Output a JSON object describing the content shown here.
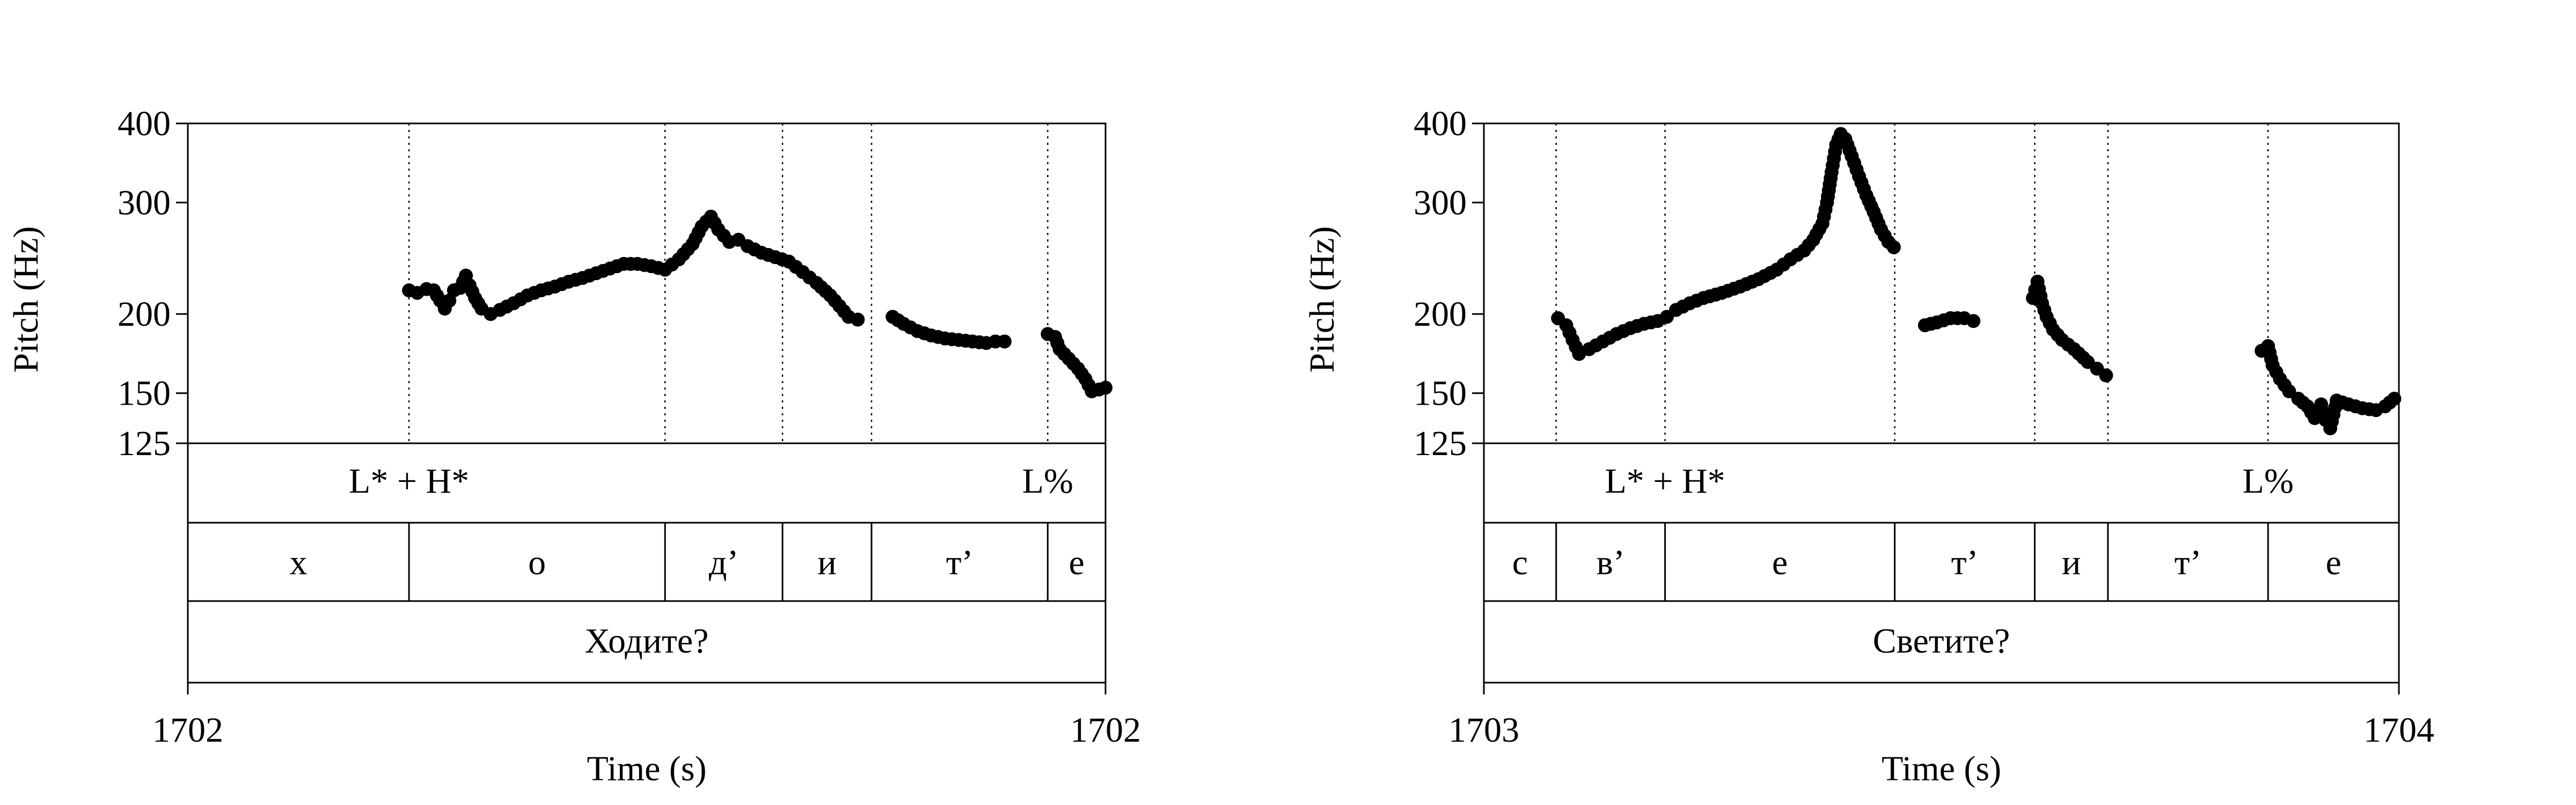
{
  "chart_data": [
    {
      "type": "scatter",
      "title": "",
      "xlabel": "Time (s)",
      "ylabel": "Pitch (Hz)",
      "x_tick_labels": [
        "1702",
        "1702"
      ],
      "xlim": [
        0,
        1
      ],
      "ylim": [
        125,
        400
      ],
      "yscale": "log",
      "yticks": [
        125,
        150,
        200,
        300,
        400
      ],
      "boundaries": [
        0.241,
        0.52,
        0.648,
        0.745,
        0.937
      ],
      "tones": [
        {
          "label": "L* + H*",
          "x": 0.241
        },
        {
          "label": "L%",
          "x": 0.937
        }
      ],
      "segments": [
        {
          "label": "х",
          "start": 0.0,
          "end": 0.241
        },
        {
          "label": "о",
          "start": 0.241,
          "end": 0.52
        },
        {
          "label": "д’",
          "start": 0.52,
          "end": 0.648
        },
        {
          "label": "и",
          "start": 0.648,
          "end": 0.745
        },
        {
          "label": "т’",
          "start": 0.745,
          "end": 0.937
        },
        {
          "label": "е",
          "start": 0.937,
          "end": 1.0
        }
      ],
      "word": "Ходите?",
      "pitch_contours": [
        [
          [
            0.241,
            218
          ],
          [
            0.25,
            216
          ],
          [
            0.26,
            219
          ],
          [
            0.268,
            218
          ],
          [
            0.275,
            210
          ],
          [
            0.28,
            204
          ],
          [
            0.285,
            210
          ],
          [
            0.29,
            218
          ],
          [
            0.297,
            220
          ],
          [
            0.303,
            230
          ],
          [
            0.307,
            222
          ],
          [
            0.313,
            212
          ],
          [
            0.32,
            204
          ],
          [
            0.33,
            200
          ],
          [
            0.34,
            203
          ],
          [
            0.355,
            208
          ],
          [
            0.37,
            214
          ],
          [
            0.385,
            218
          ],
          [
            0.4,
            221
          ],
          [
            0.415,
            225
          ],
          [
            0.43,
            228
          ],
          [
            0.445,
            232
          ],
          [
            0.46,
            236
          ],
          [
            0.475,
            240
          ],
          [
            0.49,
            240
          ],
          [
            0.505,
            238
          ],
          [
            0.52,
            235
          ],
          [
            0.535,
            244
          ],
          [
            0.55,
            258
          ],
          [
            0.56,
            275
          ],
          [
            0.57,
            285
          ],
          [
            0.578,
            272
          ],
          [
            0.59,
            260
          ],
          [
            0.6,
            262
          ],
          [
            0.61,
            256
          ],
          [
            0.625,
            250
          ],
          [
            0.64,
            246
          ],
          [
            0.655,
            242
          ],
          [
            0.67,
            233
          ],
          [
            0.685,
            224
          ],
          [
            0.7,
            214
          ],
          [
            0.71,
            206
          ],
          [
            0.72,
            198
          ],
          [
            0.73,
            196
          ]
        ],
        [
          [
            0.768,
            198
          ],
          [
            0.78,
            193
          ],
          [
            0.795,
            188
          ],
          [
            0.81,
            185
          ],
          [
            0.825,
            183
          ],
          [
            0.84,
            182
          ],
          [
            0.855,
            181
          ],
          [
            0.87,
            180
          ],
          [
            0.88,
            181
          ],
          [
            0.89,
            181
          ]
        ],
        [
          [
            0.937,
            186
          ],
          [
            0.945,
            184
          ],
          [
            0.95,
            176
          ],
          [
            0.96,
            170
          ],
          [
            0.97,
            164
          ],
          [
            0.978,
            158
          ],
          [
            0.985,
            151
          ],
          [
            0.993,
            152
          ],
          [
            1.0,
            153
          ]
        ]
      ]
    },
    {
      "type": "scatter",
      "title": "",
      "xlabel": "Time (s)",
      "ylabel": "Pitch (Hz)",
      "x_tick_labels": [
        "1703",
        "1704"
      ],
      "xlim": [
        0,
        1
      ],
      "ylim": [
        125,
        400
      ],
      "yscale": "log",
      "yticks": [
        125,
        150,
        200,
        300,
        400
      ],
      "boundaries": [
        0.079,
        0.198,
        0.449,
        0.602,
        0.682,
        0.857
      ],
      "tones": [
        {
          "label": "L* + H*",
          "x": 0.198
        },
        {
          "label": "L%",
          "x": 0.857
        }
      ],
      "segments": [
        {
          "label": "с",
          "start": 0.0,
          "end": 0.079
        },
        {
          "label": "в’",
          "start": 0.079,
          "end": 0.198
        },
        {
          "label": "е",
          "start": 0.198,
          "end": 0.449
        },
        {
          "label": "т’",
          "start": 0.449,
          "end": 0.602
        },
        {
          "label": "и",
          "start": 0.602,
          "end": 0.682
        },
        {
          "label": "т’",
          "start": 0.682,
          "end": 0.857
        },
        {
          "label": "е",
          "start": 0.857,
          "end": 1.0
        }
      ],
      "word": "Светите?",
      "pitch_contours": [
        [
          [
            0.081,
            197
          ],
          [
            0.09,
            192
          ],
          [
            0.097,
            182
          ],
          [
            0.104,
            173
          ],
          [
            0.115,
            176
          ],
          [
            0.13,
            181
          ],
          [
            0.145,
            186
          ],
          [
            0.16,
            190
          ],
          [
            0.175,
            193
          ],
          [
            0.19,
            195
          ],
          [
            0.2,
            198
          ],
          [
            0.21,
            203
          ],
          [
            0.225,
            208
          ],
          [
            0.24,
            212
          ],
          [
            0.26,
            216
          ],
          [
            0.28,
            221
          ],
          [
            0.3,
            227
          ],
          [
            0.32,
            235
          ],
          [
            0.335,
            244
          ],
          [
            0.35,
            252
          ],
          [
            0.36,
            262
          ],
          [
            0.37,
            278
          ],
          [
            0.375,
            300
          ],
          [
            0.38,
            335
          ],
          [
            0.385,
            370
          ],
          [
            0.39,
            385
          ],
          [
            0.395,
            378
          ],
          [
            0.402,
            355
          ],
          [
            0.41,
            330
          ],
          [
            0.418,
            308
          ],
          [
            0.426,
            290
          ],
          [
            0.434,
            272
          ],
          [
            0.442,
            260
          ],
          [
            0.448,
            255
          ]
        ],
        [
          [
            0.482,
            192
          ],
          [
            0.495,
            194
          ],
          [
            0.51,
            197
          ],
          [
            0.525,
            197
          ],
          [
            0.535,
            195
          ]
        ],
        [
          [
            0.6,
            212
          ],
          [
            0.605,
            225
          ],
          [
            0.61,
            208
          ],
          [
            0.615,
            198
          ],
          [
            0.622,
            189
          ],
          [
            0.632,
            182
          ],
          [
            0.645,
            176
          ],
          [
            0.66,
            168
          ],
          [
            0.67,
            164
          ],
          [
            0.68,
            160
          ]
        ],
        [
          [
            0.85,
            175
          ],
          [
            0.857,
            178
          ],
          [
            0.862,
            166
          ],
          [
            0.87,
            158
          ],
          [
            0.88,
            151
          ],
          [
            0.89,
            147
          ],
          [
            0.9,
            143
          ],
          [
            0.908,
            137
          ],
          [
            0.915,
            144
          ],
          [
            0.92,
            136
          ],
          [
            0.925,
            132
          ],
          [
            0.932,
            146
          ],
          [
            0.945,
            144
          ],
          [
            0.96,
            142
          ],
          [
            0.975,
            141
          ],
          [
            0.985,
            143
          ],
          [
            0.995,
            147
          ]
        ]
      ]
    }
  ]
}
